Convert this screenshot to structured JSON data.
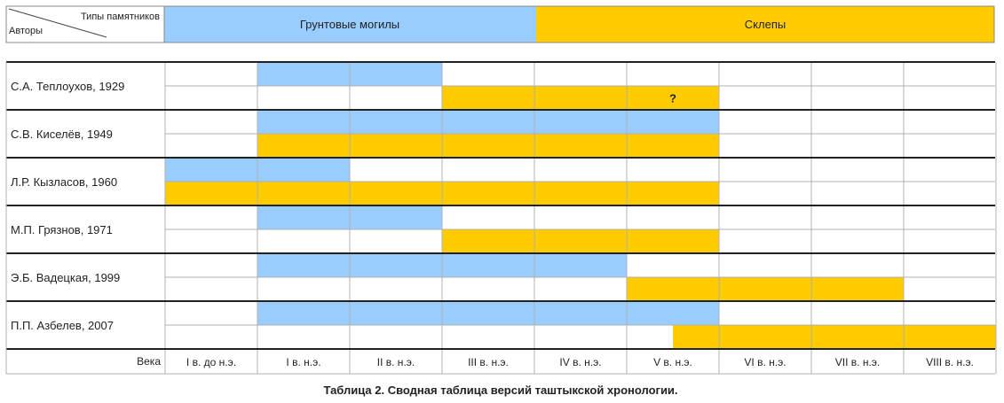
{
  "header": {
    "corner_top": "Типы памятников",
    "corner_bottom": "Авторы",
    "legend": [
      {
        "label": "Грунтовые могилы",
        "color": "#99ccff"
      },
      {
        "label": "Склепы",
        "color": "#ffcc00"
      }
    ]
  },
  "chart_data": {
    "type": "table",
    "title": "Таблица 2. Сводная таблица версий таштыкской хронологии.",
    "axis_label": "Века",
    "centuries": [
      "I в. до н.э.",
      "I в. н.э.",
      "II в. н.э.",
      "III в. н.э.",
      "IV в. н.э.",
      "V в. н.э.",
      "VI в. н.э.",
      "VII в. н.э.",
      "VIII в. н.э."
    ],
    "series": [
      {
        "name": "Грунтовые могилы",
        "color": "#99ccff"
      },
      {
        "name": "Склепы",
        "color": "#ffcc00"
      }
    ],
    "authors": [
      {
        "name": "С.А. Теплоухов, 1929",
        "graves": [
          1,
          3
        ],
        "crypts": [
          3,
          6
        ],
        "crypts_mark": "?"
      },
      {
        "name": "С.В. Киселёв, 1949",
        "graves": [
          1,
          6
        ],
        "crypts": [
          1,
          6
        ]
      },
      {
        "name": "Л.Р. Кызласов, 1960",
        "graves": [
          0,
          2
        ],
        "crypts": [
          0,
          6
        ]
      },
      {
        "name": "М.П. Грязнов, 1971",
        "graves": [
          1,
          3
        ],
        "crypts": [
          3,
          6
        ]
      },
      {
        "name": "Э.Б. Вадецкая, 1999",
        "graves": [
          1,
          5
        ],
        "crypts": [
          5,
          8
        ]
      },
      {
        "name": "П.П. Азбелев, 2007",
        "graves": [
          1,
          6
        ],
        "crypts": [
          5.5,
          9
        ]
      }
    ]
  }
}
